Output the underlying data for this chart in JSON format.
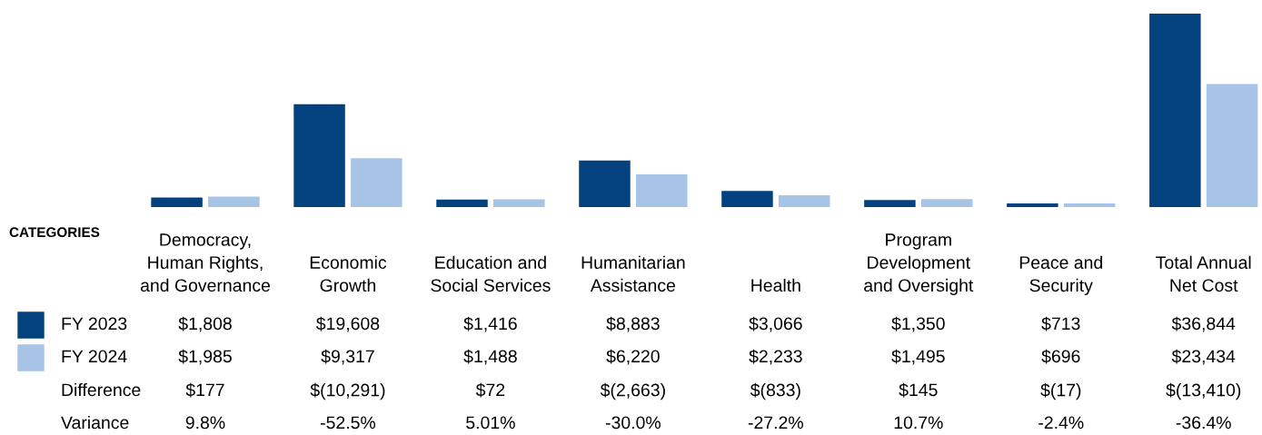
{
  "chart_data": {
    "type": "bar",
    "xlabel": "CATEGORIES",
    "categories": [
      "Democracy,\nHuman Rights,\nand Governance",
      "Economic\nGrowth",
      "Education and\nSocial Services",
      "Humanitarian\nAssistance",
      "Health",
      "Program\nDevelopment\nand Oversight",
      "Peace and\nSecurity",
      "Total Annual\nNet Cost"
    ],
    "series": [
      {
        "name": "FY 2023",
        "color": "#03417f",
        "values": [
          1808,
          19608,
          1416,
          8883,
          3066,
          1350,
          713,
          36844
        ],
        "value_labels": [
          "$1,808",
          "$19,608",
          "$1,416",
          "$8,883",
          "$3,066",
          "$1,350",
          "$713",
          "$36,844"
        ]
      },
      {
        "name": "FY 2024",
        "color": "#a7c3e6",
        "values": [
          1985,
          9317,
          1488,
          6220,
          2233,
          1495,
          696,
          23434
        ],
        "value_labels": [
          "$1,985",
          "$9,317",
          "$1,488",
          "$6,220",
          "$2,233",
          "$1,495",
          "$696",
          "$23,434"
        ]
      }
    ],
    "annotations": [
      "Difference",
      "$177",
      "$(10,291)",
      "$72",
      "$(2,663)",
      "$(833)",
      "$145",
      "$(17)",
      "$(13,410)",
      "Variance",
      "9.8%",
      "-52.5%",
      "5.01%",
      "-30.0%",
      "-27.2%",
      "10.7%",
      "-2.4%",
      "-36.4%"
    ],
    "legend": "left"
  }
}
